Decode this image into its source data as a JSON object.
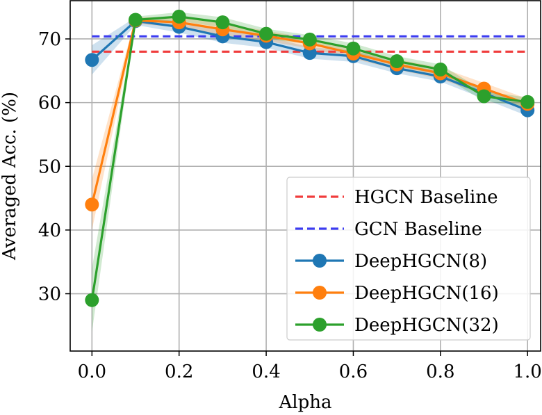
{
  "chart_data": {
    "type": "line",
    "title": "",
    "xlabel": "Alpha",
    "ylabel": "Averaged Acc. (%)",
    "xlim": [
      -0.05,
      1.03
    ],
    "ylim": [
      21,
      76
    ],
    "x": [
      0.0,
      0.1,
      0.2,
      0.3,
      0.4,
      0.5,
      0.6,
      0.7,
      0.8,
      0.9,
      1.0
    ],
    "xticks": [
      0.0,
      0.2,
      0.4,
      0.6,
      0.8,
      1.0
    ],
    "xtick_labels": [
      "0.0",
      "0.2",
      "0.4",
      "0.6",
      "0.8",
      "1.0"
    ],
    "yticks": [
      30,
      40,
      50,
      60,
      70
    ],
    "ytick_labels": [
      "30",
      "40",
      "50",
      "60",
      "70"
    ],
    "grid": true,
    "legend_position": "bottom-right",
    "baselines": [
      {
        "name": "HGCN Baseline",
        "value": 68.0,
        "color": "#f03c3c",
        "style": "dashed"
      },
      {
        "name": "GCN Baseline",
        "value": 70.4,
        "color": "#3c3cf0",
        "style": "dashed"
      }
    ],
    "series": [
      {
        "name": "DeepHGCN(8)",
        "color": "#1f77b4",
        "values": [
          66.7,
          72.8,
          71.9,
          70.4,
          69.5,
          67.8,
          67.3,
          65.4,
          64.1,
          61.5,
          58.8
        ],
        "band": [
          2.3,
          0.6,
          0.9,
          1.0,
          0.9,
          0.9,
          0.9,
          0.8,
          0.8,
          0.9,
          0.9
        ]
      },
      {
        "name": "DeepHGCN(16)",
        "color": "#ff7f0e",
        "values": [
          44.0,
          72.9,
          72.6,
          71.5,
          70.5,
          69.3,
          67.7,
          66.0,
          64.6,
          62.2,
          59.8
        ],
        "band": [
          4.0,
          0.5,
          0.8,
          0.9,
          0.8,
          0.8,
          0.8,
          0.8,
          0.9,
          0.9,
          0.8
        ]
      },
      {
        "name": "DeepHGCN(32)",
        "color": "#2ca02c",
        "values": [
          29.0,
          73.0,
          73.5,
          72.6,
          70.8,
          69.9,
          68.5,
          66.5,
          65.2,
          61.0,
          60.1
        ],
        "band": [
          5.0,
          0.5,
          0.7,
          0.8,
          0.8,
          0.7,
          0.8,
          0.8,
          0.8,
          0.8,
          0.7
        ]
      }
    ]
  }
}
